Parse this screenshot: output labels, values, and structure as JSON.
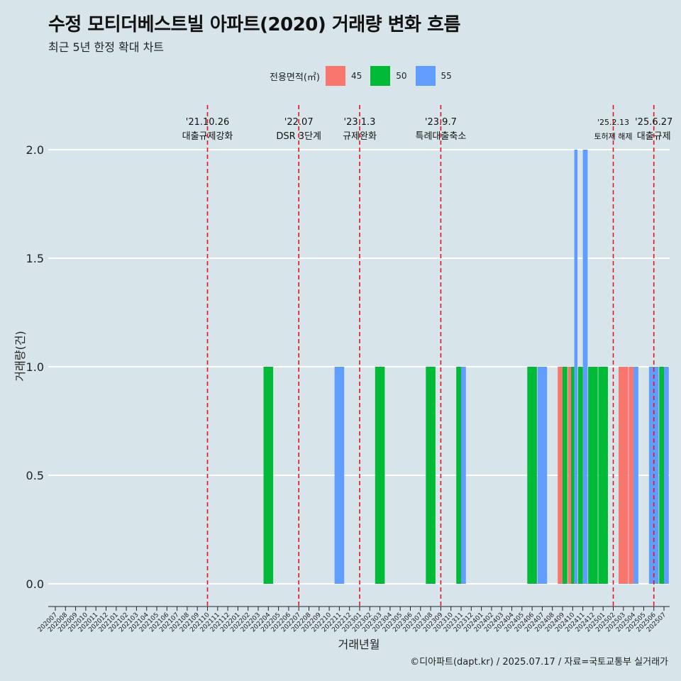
{
  "title": "수정 모티더베스트빌 아파트(2020) 거래량 변화 흐름",
  "subtitle": "최근 5년 한정 확대 차트",
  "caption": "©디아파트(dapt.kr) / 2025.07.17 / 자료=국토교통부 실거래가",
  "legend": {
    "title": "전용면적(㎡)",
    "items": [
      {
        "label": "45",
        "color": "#F8766D"
      },
      {
        "label": "50",
        "color": "#00BA38"
      },
      {
        "label": "55",
        "color": "#619CFF"
      }
    ]
  },
  "chart_data": {
    "type": "bar",
    "xlabel": "거래년월",
    "ylabel": "거래량(건)",
    "ylim": [
      0,
      2
    ],
    "yticks": [
      "0.0",
      "0.5",
      "1.0",
      "1.5",
      "2.0"
    ],
    "grid": "horizontal",
    "categories": [
      "202007",
      "202008",
      "202009",
      "202010",
      "202011",
      "202012",
      "202101",
      "202102",
      "202103",
      "202104",
      "202105",
      "202106",
      "202107",
      "202108",
      "202109",
      "202110",
      "202111",
      "202112",
      "202201",
      "202202",
      "202203",
      "202204",
      "202205",
      "202206",
      "202207",
      "202208",
      "202209",
      "202210",
      "202211",
      "202212",
      "202301",
      "202302",
      "202303",
      "202304",
      "202305",
      "202306",
      "202307",
      "202308",
      "202309",
      "202310",
      "202311",
      "202312",
      "202401",
      "202402",
      "202403",
      "202404",
      "202405",
      "202406",
      "202407",
      "202408",
      "202409",
      "202410",
      "202411",
      "202412",
      "202501",
      "202502",
      "202503",
      "202504",
      "202505",
      "202506",
      "202507"
    ],
    "series": [
      {
        "name": "45",
        "color": "#F8766D",
        "values": [
          0,
          0,
          0,
          0,
          0,
          0,
          0,
          0,
          0,
          0,
          0,
          0,
          0,
          0,
          0,
          0,
          0,
          0,
          0,
          0,
          0,
          0,
          0,
          0,
          0,
          0,
          0,
          0,
          0,
          0,
          0,
          0,
          0,
          0,
          0,
          0,
          0,
          0,
          0,
          0,
          0,
          0,
          0,
          0,
          0,
          0,
          0,
          0,
          0,
          0,
          1,
          1,
          0,
          0,
          0,
          0,
          1,
          1,
          0,
          0,
          0
        ]
      },
      {
        "name": "50",
        "color": "#00BA38",
        "values": [
          0,
          0,
          0,
          0,
          0,
          0,
          0,
          0,
          0,
          0,
          0,
          0,
          0,
          0,
          0,
          0,
          0,
          0,
          0,
          0,
          0,
          1,
          0,
          0,
          0,
          0,
          0,
          0,
          0,
          0,
          0,
          0,
          1,
          0,
          0,
          0,
          0,
          1,
          0,
          0,
          1,
          0,
          0,
          0,
          0,
          0,
          0,
          1,
          0,
          0,
          1,
          1,
          1,
          1,
          1,
          0,
          0,
          0,
          0,
          0,
          1
        ]
      },
      {
        "name": "55",
        "color": "#619CFF",
        "values": [
          0,
          0,
          0,
          0,
          0,
          0,
          0,
          0,
          0,
          0,
          0,
          0,
          0,
          0,
          0,
          0,
          0,
          0,
          0,
          0,
          0,
          0,
          0,
          0,
          0,
          0,
          0,
          0,
          1,
          0,
          0,
          0,
          0,
          0,
          0,
          0,
          0,
          0,
          0,
          0,
          1,
          0,
          0,
          0,
          0,
          0,
          0,
          0,
          1,
          0,
          0,
          2,
          2,
          0,
          0,
          0,
          0,
          1,
          0,
          1,
          1
        ]
      }
    ],
    "annotations": [
      {
        "x": "202110",
        "date": "'21.10.26",
        "label": "대출규제강화"
      },
      {
        "x": "202207",
        "date": "'22.07",
        "label": "DSR 3단계"
      },
      {
        "x": "202301",
        "date": "'23.1.3",
        "label": "규제완화"
      },
      {
        "x": "202309",
        "date": "'23.9.7",
        "label": "특례대출축소"
      },
      {
        "x": "202502",
        "date": "'25.2.13",
        "label": "토허제 해제"
      },
      {
        "x": "202506",
        "date": "'25.6.27",
        "label": "대출규제"
      }
    ]
  }
}
